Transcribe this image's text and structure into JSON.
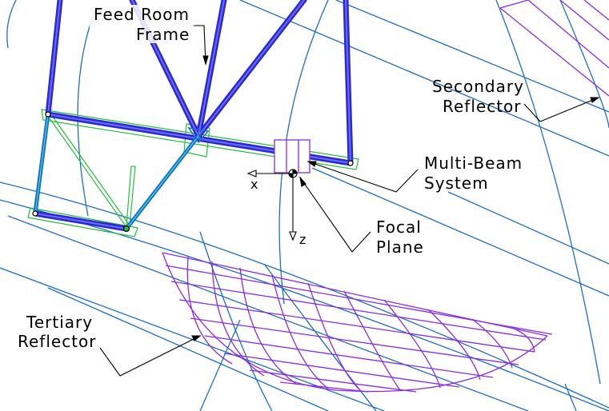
{
  "labels": {
    "feed_room_line1": "Feed Room",
    "feed_room_line2": "Frame",
    "secondary_line1": "Secondary",
    "secondary_line2": "Reflector",
    "multibeam_line1": "Multi-Beam",
    "multibeam_line2": "System",
    "focal_line1": "Focal",
    "focal_line2": "Plane",
    "tertiary_line1": "Tertiary",
    "tertiary_line2": "Reflector",
    "axis_x": "x",
    "axis_z": "z"
  },
  "colors": {
    "frame": "#2a2ad0",
    "frame_highlight": "#6b6bff",
    "ray": "#1a6fc4",
    "green_outline": "#22c03a",
    "reflector": "#8a2be2",
    "pointer": "#000000"
  }
}
